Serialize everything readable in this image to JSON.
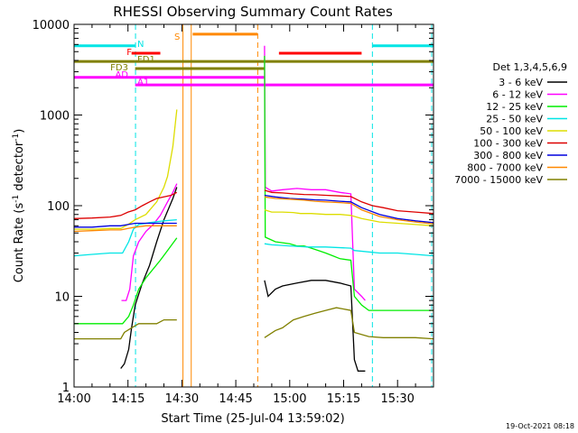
{
  "chart_data": {
    "type": "line",
    "title": "RHESSI Observing Summary Count Rates",
    "xlabel": "Start Time (25-Jul-04 13:59:02)",
    "ylabel_main": "Count Rate (s",
    "ylabel_sup1": "-1",
    "ylabel_mid": " detector",
    "ylabel_sup2": "-1",
    "ylabel_end": ")",
    "footer_timestamp": "19-Oct-2021 08:18",
    "y_scale": "log",
    "ylim": [
      1,
      10000
    ],
    "x_unit": "minutes after 14:00 UT",
    "xlim": [
      0,
      100
    ],
    "x_ticks": [
      {
        "v": 0,
        "label": "14:00"
      },
      {
        "v": 15,
        "label": "14:15"
      },
      {
        "v": 30,
        "label": "14:30"
      },
      {
        "v": 45,
        "label": "14:45"
      },
      {
        "v": 60,
        "label": "15:00"
      },
      {
        "v": 75,
        "label": "15:15"
      },
      {
        "v": 90,
        "label": "15:30"
      }
    ],
    "y_ticks": [
      {
        "v": 1,
        "label": "1"
      },
      {
        "v": 10,
        "label": "10"
      },
      {
        "v": 100,
        "label": "100"
      },
      {
        "v": 1000,
        "label": "1000"
      },
      {
        "v": 10000,
        "label": "10000"
      }
    ],
    "legend_placement": "right",
    "legend_title": "Det 1,3,4,5,6,9",
    "series": [
      {
        "name": "3 - 6 keV",
        "color": "#000000",
        "points": [
          [
            13.0,
            1.6
          ],
          [
            14.0,
            1.8
          ],
          [
            15.2,
            2.6
          ],
          [
            16,
            4.5
          ],
          [
            17,
            8
          ],
          [
            19,
            14
          ],
          [
            21,
            22
          ],
          [
            23,
            40
          ],
          [
            25,
            70
          ],
          [
            27.5,
            120
          ],
          [
            28.6,
            160
          ],
          null,
          [
            53,
            15
          ],
          [
            54,
            10
          ],
          [
            56,
            12
          ],
          [
            58,
            13
          ],
          [
            62,
            14
          ],
          [
            66,
            15
          ],
          [
            70,
            15
          ],
          [
            74,
            14
          ],
          [
            77,
            13
          ],
          [
            78,
            2
          ],
          [
            79,
            1.5
          ],
          [
            81,
            1.5
          ]
        ]
      },
      {
        "name": "6 - 12 keV",
        "color": "#ff00ff",
        "points": [
          [
            13.2,
            9
          ],
          [
            14.5,
            9
          ],
          [
            15.5,
            12
          ],
          [
            16.5,
            28
          ],
          [
            18,
            40
          ],
          [
            20,
            52
          ],
          [
            22,
            62
          ],
          [
            24,
            78
          ],
          [
            26,
            110
          ],
          [
            27.5,
            140
          ],
          [
            28.6,
            175
          ],
          null,
          [
            53,
            5800
          ],
          [
            53.2,
            160
          ],
          [
            55,
            145
          ],
          [
            58,
            150
          ],
          [
            62,
            155
          ],
          [
            66,
            150
          ],
          [
            70,
            150
          ],
          [
            74,
            140
          ],
          [
            77,
            135
          ],
          [
            78,
            12
          ],
          [
            80,
            10
          ],
          [
            81,
            9
          ]
        ]
      },
      {
        "name": "12 - 25 keV",
        "color": "#00ee00",
        "points": [
          [
            0,
            5
          ],
          [
            10,
            5
          ],
          [
            13.5,
            5
          ],
          [
            15.2,
            6
          ],
          [
            16.5,
            8
          ],
          [
            18,
            12
          ],
          [
            20,
            16
          ],
          [
            22,
            20
          ],
          [
            24,
            25
          ],
          [
            26,
            32
          ],
          [
            28.6,
            44
          ],
          null,
          [
            53,
            4500
          ],
          [
            53.2,
            45
          ],
          [
            56,
            40
          ],
          [
            60,
            38
          ],
          [
            62,
            36
          ],
          [
            64,
            36
          ],
          [
            66,
            34
          ],
          [
            68,
            32
          ],
          [
            70,
            30
          ],
          [
            72,
            28
          ],
          [
            74,
            26
          ],
          [
            77,
            25
          ],
          [
            78,
            10
          ],
          [
            80,
            8
          ],
          [
            82,
            7
          ],
          [
            100,
            7
          ]
        ]
      },
      {
        "name": "25 - 50 keV",
        "color": "#00e5e5",
        "points": [
          [
            0,
            28
          ],
          [
            5,
            29
          ],
          [
            10,
            30
          ],
          [
            13.5,
            30
          ],
          [
            15.2,
            40
          ],
          [
            16.5,
            55
          ],
          [
            18,
            62
          ],
          [
            21,
            65
          ],
          [
            25,
            68
          ],
          [
            28.6,
            70
          ],
          null,
          [
            53,
            38
          ],
          [
            55,
            37
          ],
          [
            60,
            36
          ],
          [
            65,
            35
          ],
          [
            70,
            35
          ],
          [
            77,
            34
          ],
          [
            78,
            32
          ],
          [
            85,
            30
          ],
          [
            90,
            30
          ],
          [
            95,
            29
          ],
          [
            100,
            28
          ]
        ]
      },
      {
        "name": "50 - 100 keV",
        "color": "#dddd00",
        "points": [
          [
            0,
            55
          ],
          [
            5,
            55
          ],
          [
            10,
            56
          ],
          [
            13,
            56
          ],
          [
            15,
            62
          ],
          [
            17,
            70
          ],
          [
            20,
            80
          ],
          [
            23,
            110
          ],
          [
            25,
            160
          ],
          [
            26,
            210
          ],
          [
            27.5,
            450
          ],
          [
            28.6,
            1150
          ],
          null,
          [
            53,
            90
          ],
          [
            55,
            85
          ],
          [
            58,
            85
          ],
          [
            61,
            84
          ],
          [
            63,
            82
          ],
          [
            66,
            82
          ],
          [
            70,
            80
          ],
          [
            74,
            80
          ],
          [
            77,
            78
          ],
          [
            80,
            72
          ],
          [
            85,
            66
          ],
          [
            90,
            64
          ],
          [
            95,
            62
          ],
          [
            100,
            60
          ]
        ]
      },
      {
        "name": "100 - 300 keV",
        "color": "#dd0000",
        "points": [
          [
            0,
            72
          ],
          [
            5,
            73
          ],
          [
            10,
            75
          ],
          [
            13,
            78
          ],
          [
            15,
            85
          ],
          [
            17,
            90
          ],
          [
            19,
            100
          ],
          [
            21,
            110
          ],
          [
            23,
            120
          ],
          [
            25,
            125
          ],
          [
            27,
            130
          ],
          [
            28.6,
            140
          ],
          null,
          [
            53,
            148
          ],
          [
            55,
            140
          ],
          [
            58,
            138
          ],
          [
            61,
            135
          ],
          [
            64,
            133
          ],
          [
            67,
            132
          ],
          [
            70,
            130
          ],
          [
            74,
            128
          ],
          [
            77,
            126
          ],
          [
            80,
            110
          ],
          [
            83,
            100
          ],
          [
            86,
            95
          ],
          [
            90,
            88
          ],
          [
            95,
            85
          ],
          [
            100,
            82
          ]
        ]
      },
      {
        "name": "300 - 800 keV",
        "color": "#0000dd",
        "points": [
          [
            0,
            58
          ],
          [
            5,
            58
          ],
          [
            10,
            60
          ],
          [
            13,
            60
          ],
          [
            15,
            62
          ],
          [
            17,
            64
          ],
          [
            20,
            64
          ],
          [
            24,
            64
          ],
          [
            28.6,
            64
          ],
          null,
          [
            53,
            130
          ],
          [
            56,
            125
          ],
          [
            60,
            120
          ],
          [
            64,
            118
          ],
          [
            67,
            116
          ],
          [
            70,
            115
          ],
          [
            74,
            112
          ],
          [
            77,
            110
          ],
          [
            80,
            95
          ],
          [
            85,
            80
          ],
          [
            90,
            72
          ],
          [
            95,
            68
          ],
          [
            100,
            65
          ]
        ]
      },
      {
        "name": "800 - 7000 keV",
        "color": "#ff8800",
        "points": [
          [
            0,
            52
          ],
          [
            5,
            53
          ],
          [
            10,
            54
          ],
          [
            13,
            54
          ],
          [
            15,
            56
          ],
          [
            17,
            58
          ],
          [
            20,
            60
          ],
          [
            24,
            60
          ],
          [
            28.6,
            60
          ],
          null,
          [
            53,
            125
          ],
          [
            56,
            120
          ],
          [
            60,
            118
          ],
          [
            64,
            115
          ],
          [
            67,
            112
          ],
          [
            70,
            110
          ],
          [
            74,
            108
          ],
          [
            77,
            106
          ],
          [
            80,
            90
          ],
          [
            85,
            76
          ],
          [
            90,
            70
          ],
          [
            95,
            66
          ],
          [
            100,
            63
          ]
        ]
      },
      {
        "name": "7000 - 15000 keV",
        "color": "#808000",
        "points": [
          [
            0,
            3.4
          ],
          [
            10,
            3.4
          ],
          [
            13,
            3.4
          ],
          [
            14,
            4
          ],
          [
            16,
            4.5
          ],
          [
            18,
            5
          ],
          [
            20,
            5
          ],
          [
            23,
            5
          ],
          [
            25,
            5.5
          ],
          [
            28.6,
            5.5
          ],
          null,
          [
            53,
            3.5
          ],
          [
            56,
            4.2
          ],
          [
            58,
            4.5
          ],
          [
            61,
            5.5
          ],
          [
            64,
            6
          ],
          [
            67,
            6.5
          ],
          [
            70,
            7
          ],
          [
            73,
            7.5
          ],
          [
            77,
            7
          ],
          [
            78,
            4
          ],
          [
            82,
            3.6
          ],
          [
            86,
            3.5
          ],
          [
            90,
            3.5
          ],
          [
            95,
            3.5
          ],
          [
            100,
            3.4
          ]
        ]
      }
    ],
    "flag_bars": [
      {
        "label": "N",
        "color": "#00e5e5",
        "y": 5800,
        "segments": [
          [
            0,
            17
          ],
          [
            83,
            100
          ]
        ]
      },
      {
        "label": "S",
        "color": "#ff8800",
        "y": 7800,
        "segments": [
          [
            33,
            51
          ]
        ]
      },
      {
        "label": "F",
        "color": "#ff0000",
        "y": 4800,
        "segments": [
          [
            16,
            24
          ],
          [
            57,
            80
          ]
        ]
      },
      {
        "label": "FD1",
        "color": "#808000",
        "y": 3900,
        "segments": [
          [
            0,
            17
          ],
          [
            17,
            100
          ]
        ]
      },
      {
        "label": "FD3",
        "color": "#808000",
        "y": 3250,
        "segments": [
          [
            17,
            53
          ]
        ]
      },
      {
        "label": "AD",
        "color": "#ff00ff",
        "y": 2600,
        "segments": [
          [
            0,
            17
          ],
          [
            17,
            53
          ]
        ]
      },
      {
        "label": "A1",
        "color": "#ff00ff",
        "y": 2150,
        "segments": [
          [
            17,
            100
          ]
        ]
      }
    ],
    "vertical_lines": [
      {
        "x": 17.1,
        "color": "#00e5e5",
        "style": "dashed"
      },
      {
        "x": 83.0,
        "color": "#00e5e5",
        "style": "dashed"
      },
      {
        "x": 99.5,
        "color": "#00e5e5",
        "style": "dashed"
      },
      {
        "x": 51.1,
        "color": "#ff8800",
        "style": "dashed"
      },
      {
        "x": 30.3,
        "color": "#ff8800",
        "style": "solid"
      },
      {
        "x": 32.6,
        "color": "#ff8800",
        "style": "solid"
      }
    ]
  }
}
